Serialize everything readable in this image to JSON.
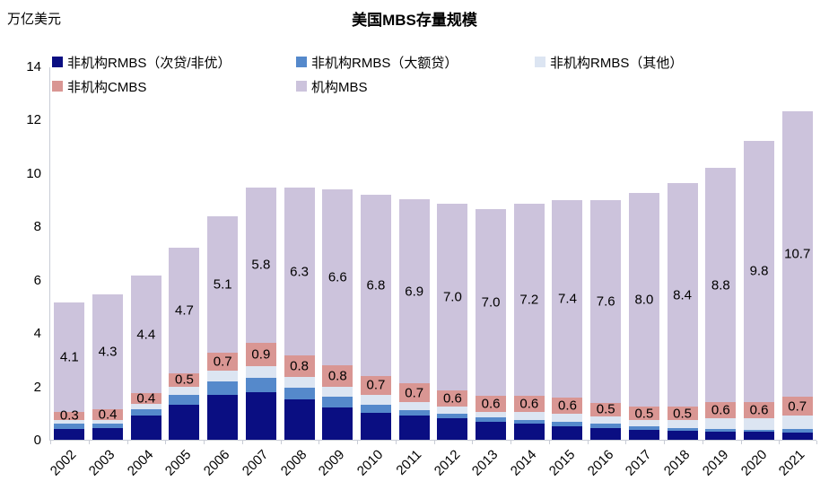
{
  "unit_label": "万亿美元",
  "title": "美国MBS存量规模",
  "chart_data": {
    "type": "bar",
    "stacked": true,
    "title": "美国MBS存量规模",
    "y_unit": "万亿美元",
    "ylim": [
      0,
      14
    ],
    "yticks": [
      0,
      2,
      4,
      6,
      8,
      10,
      12,
      14
    ],
    "grid": false,
    "legend_position": "top",
    "categories": [
      "2002",
      "2003",
      "2004",
      "2005",
      "2006",
      "2007",
      "2008",
      "2009",
      "2010",
      "2011",
      "2012",
      "2013",
      "2014",
      "2015",
      "2016",
      "2017",
      "2018",
      "2019",
      "2020",
      "2021"
    ],
    "series": [
      {
        "name": "非机构RMBS（次贷/非优）",
        "color": "#0a0e82",
        "show_labels": false,
        "values": [
          0.4,
          0.45,
          0.9,
          1.3,
          1.7,
          1.8,
          1.5,
          1.2,
          1.0,
          0.9,
          0.8,
          0.68,
          0.6,
          0.52,
          0.45,
          0.37,
          0.34,
          0.31,
          0.29,
          0.26
        ]
      },
      {
        "name": "非机构RMBS（大额贷）",
        "color": "#5589cb",
        "show_labels": false,
        "values": [
          0.2,
          0.17,
          0.26,
          0.4,
          0.48,
          0.52,
          0.45,
          0.4,
          0.32,
          0.22,
          0.17,
          0.17,
          0.14,
          0.16,
          0.15,
          0.14,
          0.11,
          0.09,
          0.09,
          0.15
        ]
      },
      {
        "name": "非机构RMBS（其他）",
        "color": "#dce5f2",
        "show_labels": false,
        "values": [
          0.15,
          0.13,
          0.19,
          0.3,
          0.4,
          0.43,
          0.4,
          0.4,
          0.38,
          0.3,
          0.27,
          0.19,
          0.31,
          0.29,
          0.28,
          0.23,
          0.28,
          0.4,
          0.44,
          0.5
        ]
      },
      {
        "name": "非机构CMBS",
        "color": "#d99693",
        "show_labels": true,
        "labels": [
          "0.3",
          "0.4",
          "0.4",
          "0.5",
          "0.7",
          "0.9",
          "0.8",
          "0.8",
          "0.7",
          "0.7",
          "0.6",
          "0.6",
          "0.6",
          "0.6",
          "0.5",
          "0.5",
          "0.5",
          "0.6",
          "0.6",
          "0.7"
        ],
        "values": [
          0.3,
          0.4,
          0.4,
          0.5,
          0.7,
          0.9,
          0.8,
          0.8,
          0.7,
          0.7,
          0.6,
          0.6,
          0.6,
          0.6,
          0.5,
          0.5,
          0.5,
          0.6,
          0.6,
          0.7
        ]
      },
      {
        "name": "机构MBS",
        "color": "#ccc3dc",
        "show_labels": true,
        "labels": [
          "4.1",
          "4.3",
          "4.4",
          "4.7",
          "5.1",
          "5.8",
          "6.3",
          "6.6",
          "6.8",
          "6.9",
          "7.0",
          "7.0",
          "7.2",
          "7.4",
          "7.6",
          "8.0",
          "8.4",
          "8.8",
          "9.8",
          "10.7"
        ],
        "values": [
          4.1,
          4.3,
          4.4,
          4.7,
          5.1,
          5.8,
          6.3,
          6.6,
          6.8,
          6.9,
          7.0,
          7.0,
          7.2,
          7.4,
          7.6,
          8.0,
          8.4,
          8.8,
          9.8,
          10.7
        ]
      }
    ],
    "axis_color": "#c9cdd6",
    "label_color": "#000000"
  }
}
